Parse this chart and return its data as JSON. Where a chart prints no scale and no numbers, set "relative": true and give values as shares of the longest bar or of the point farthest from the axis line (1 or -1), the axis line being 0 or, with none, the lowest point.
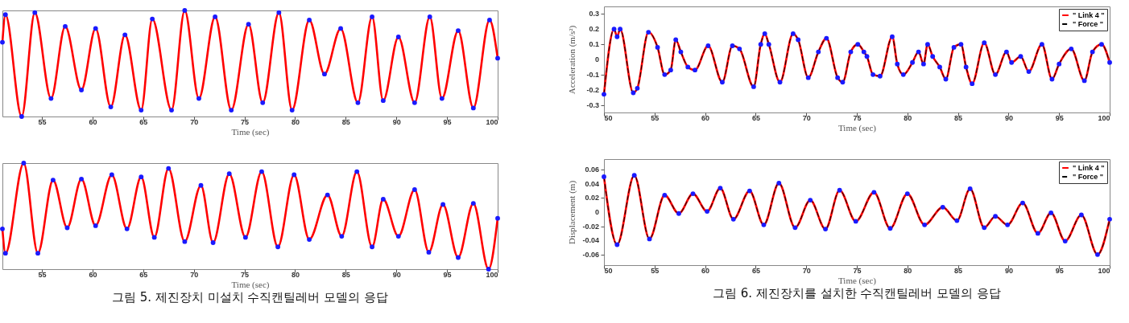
{
  "chart_data": [
    {
      "type": "line",
      "relative": true,
      "xlabel": "Time (sec)",
      "x": [
        51.1,
        51.4,
        53.0,
        54.3,
        55.9,
        57.3,
        58.9,
        60.3,
        61.8,
        63.2,
        64.8,
        65.9,
        67.8,
        69.1,
        70.5,
        72.1,
        73.7,
        75.4,
        76.8,
        78.4,
        79.7,
        81.4,
        82.9,
        84.5,
        86.2,
        87.6,
        88.7,
        90.2,
        91.8,
        93.3,
        94.5,
        96.1,
        97.6,
        99.2,
        100
      ],
      "xlim": [
        51.1,
        100
      ],
      "xticks": [
        55,
        60,
        65,
        70,
        75,
        80,
        85,
        90,
        95,
        100
      ],
      "tick_labels": "x",
      "series": [
        {
          "type": "line",
          "color": "#ff0000",
          "values": [
            0.7,
            0.96,
            0,
            0.98,
            0.17,
            0.85,
            0.25,
            0.83,
            0.09,
            0.77,
            0.06,
            0.92,
            0.06,
            1.0,
            0.17,
            0.94,
            0.06,
            0.87,
            0.13,
            0.98,
            0.06,
            0.91,
            0.4,
            0.83,
            0.13,
            0.94,
            0.15,
            0.75,
            0.13,
            0.94,
            0.17,
            0.81,
            0.08,
            0.91,
            0.55
          ]
        },
        {
          "type": "scatter",
          "marker": "circle",
          "color": "#1a1aff",
          "values": [
            0.7,
            0.96,
            0,
            0.98,
            0.17,
            0.85,
            0.25,
            0.83,
            0.09,
            0.77,
            0.06,
            0.92,
            0.06,
            1.0,
            0.17,
            0.94,
            0.06,
            0.87,
            0.13,
            0.98,
            0.06,
            0.91,
            0.4,
            0.83,
            0.13,
            0.94,
            0.15,
            0.75,
            0.13,
            0.94,
            0.17,
            0.81,
            0.08,
            0.91,
            0.55
          ]
        }
      ]
    },
    {
      "type": "line",
      "xlabel": "Time (sec)",
      "ylabel": "Acceleration (m/s²)",
      "legend": "top right",
      "x": [
        50,
        51,
        51.3,
        51.6,
        52.9,
        53.3,
        54.4,
        55.3,
        56,
        56.6,
        57.1,
        57.6,
        58.3,
        59,
        60.3,
        61.7,
        62.7,
        63.4,
        64.8,
        65.5,
        65.9,
        66.3,
        67.4,
        68.7,
        69.2,
        70.2,
        71.2,
        72,
        73.1,
        73.6,
        74.4,
        75.1,
        75.7,
        76,
        76.6,
        77.3,
        78.5,
        79,
        79.6,
        80.5,
        81.1,
        81.6,
        82,
        82.5,
        83.2,
        83.8,
        84.6,
        85.3,
        85.8,
        86.4,
        87.6,
        88.7,
        89.8,
        90.3,
        91.2,
        92,
        93.3,
        94.3,
        95,
        96.2,
        97.5,
        98.3,
        99.2,
        100
      ],
      "xlim": [
        50,
        100
      ],
      "xticks": [
        50,
        55,
        60,
        65,
        70,
        75,
        80,
        85,
        90,
        95,
        100
      ],
      "ylim": [
        -0.35,
        0.35
      ],
      "yticks": [
        -0.3,
        -0.2,
        -0.1,
        0,
        0.1,
        0.2,
        0.3
      ],
      "series": [
        {
          "type": "line",
          "name": "\" Link 4 \"",
          "color": "#ff0000",
          "values": [
            -0.23,
            0.2,
            0.15,
            0.2,
            -0.22,
            -0.19,
            0.18,
            0.08,
            -0.1,
            -0.07,
            0.13,
            0.05,
            -0.05,
            -0.07,
            0.09,
            -0.15,
            0.09,
            0.07,
            -0.18,
            0.1,
            0.17,
            0.1,
            -0.15,
            0.17,
            0.13,
            -0.12,
            0.05,
            0.14,
            -0.12,
            -0.15,
            0.05,
            0.1,
            0.05,
            0.02,
            -0.1,
            -0.11,
            0.15,
            -0.03,
            -0.1,
            -0.02,
            0.05,
            -0.03,
            0.1,
            0.02,
            -0.05,
            -0.13,
            0.08,
            0.1,
            -0.05,
            -0.16,
            0.11,
            -0.1,
            0.05,
            -0.02,
            0.02,
            -0.08,
            0.1,
            -0.13,
            -0.03,
            0.07,
            -0.14,
            0.05,
            0.1,
            -0.02
          ]
        },
        {
          "type": "line",
          "name": "\" Force \"",
          "color": "#000000",
          "line_style": "dashed",
          "values": [
            -0.23,
            0.2,
            0.15,
            0.2,
            -0.22,
            -0.19,
            0.18,
            0.08,
            -0.1,
            -0.07,
            0.13,
            0.05,
            -0.05,
            -0.07,
            0.09,
            -0.15,
            0.09,
            0.07,
            -0.18,
            0.1,
            0.17,
            0.1,
            -0.15,
            0.17,
            0.13,
            -0.12,
            0.05,
            0.14,
            -0.12,
            -0.15,
            0.05,
            0.1,
            0.05,
            0.02,
            -0.1,
            -0.11,
            0.15,
            -0.03,
            -0.1,
            -0.02,
            0.05,
            -0.03,
            0.1,
            0.02,
            -0.05,
            -0.13,
            0.08,
            0.1,
            -0.05,
            -0.16,
            0.11,
            -0.1,
            0.05,
            -0.02,
            0.02,
            -0.08,
            0.1,
            -0.13,
            -0.03,
            0.07,
            -0.14,
            0.05,
            0.1,
            -0.02
          ]
        },
        {
          "type": "scatter",
          "marker": "circle",
          "color": "#1a1aff",
          "values": [
            -0.23,
            0.2,
            0.15,
            0.2,
            -0.22,
            -0.19,
            0.18,
            0.08,
            -0.1,
            -0.07,
            0.13,
            0.05,
            -0.05,
            -0.07,
            0.09,
            -0.15,
            0.09,
            0.07,
            -0.18,
            0.1,
            0.17,
            0.1,
            -0.15,
            0.17,
            0.13,
            -0.12,
            0.05,
            0.14,
            -0.12,
            -0.15,
            0.05,
            0.1,
            0.05,
            0.02,
            -0.1,
            -0.11,
            0.15,
            -0.03,
            -0.1,
            -0.02,
            0.05,
            -0.03,
            0.1,
            0.02,
            -0.05,
            -0.13,
            0.08,
            0.1,
            -0.05,
            -0.16,
            0.11,
            -0.1,
            0.05,
            -0.02,
            0.02,
            -0.08,
            0.1,
            -0.13,
            -0.03,
            0.07,
            -0.14,
            0.05,
            0.1,
            -0.02
          ]
        }
      ]
    },
    {
      "type": "line",
      "relative": true,
      "xlabel": "Time (sec)",
      "x": [
        51.1,
        51.4,
        53.2,
        54.6,
        56.1,
        57.5,
        58.9,
        60.3,
        61.9,
        63.4,
        64.8,
        66.1,
        67.5,
        69.1,
        70.7,
        71.9,
        73.5,
        75.1,
        76.7,
        78.3,
        79.9,
        81.4,
        83.2,
        84.6,
        86.1,
        87.6,
        88.7,
        90.2,
        91.8,
        93.2,
        94.6,
        96.1,
        97.6,
        99.1,
        100
      ],
      "xlim": [
        51.1,
        100
      ],
      "xticks": [
        55,
        60,
        65,
        70,
        75,
        80,
        85,
        90,
        95,
        100
      ],
      "tick_labels": "x",
      "annotations": [
        "그림 5. 제진장치 미설치 수직캔틸레버 모델의 응답"
      ],
      "series": [
        {
          "type": "line",
          "color": "#ff0000",
          "values": [
            0.38,
            0.15,
            1.0,
            0.15,
            0.84,
            0.39,
            0.85,
            0.41,
            0.89,
            0.38,
            0.87,
            0.3,
            0.95,
            0.26,
            0.79,
            0.25,
            0.9,
            0.3,
            0.92,
            0.21,
            0.89,
            0.28,
            0.7,
            0.31,
            0.92,
            0.21,
            0.66,
            0.31,
            0.75,
            0.16,
            0.61,
            0.11,
            0.62,
            0,
            0.48
          ]
        },
        {
          "type": "scatter",
          "marker": "circle",
          "color": "#1a1aff",
          "values": [
            0.38,
            0.15,
            1.0,
            0.15,
            0.84,
            0.39,
            0.85,
            0.41,
            0.89,
            0.38,
            0.87,
            0.3,
            0.95,
            0.26,
            0.79,
            0.25,
            0.9,
            0.3,
            0.92,
            0.21,
            0.89,
            0.28,
            0.7,
            0.31,
            0.92,
            0.21,
            0.66,
            0.31,
            0.75,
            0.16,
            0.61,
            0.11,
            0.62,
            0,
            0.48
          ]
        }
      ]
    },
    {
      "type": "line",
      "xlabel": "Time (sec)",
      "ylabel": "Displacement (m)",
      "legend": "top right",
      "annotations": [
        "그림 6. 제진장치를 설치한 수직캔틸레버 모델의 응답"
      ],
      "x": [
        50,
        51.3,
        53,
        54.5,
        56,
        57.4,
        58.8,
        60.2,
        61.5,
        62.8,
        64.4,
        65.8,
        67.3,
        68.9,
        70.4,
        71.9,
        73.3,
        74.9,
        76.7,
        78.3,
        80,
        81.7,
        83.5,
        84.9,
        86.2,
        87.6,
        88.7,
        89.9,
        91.4,
        92.9,
        94.2,
        95.6,
        97.2,
        98.8,
        100
      ],
      "xlim": [
        50,
        100
      ],
      "xticks": [
        50,
        55,
        60,
        65,
        70,
        75,
        80,
        85,
        90,
        95,
        100
      ],
      "ylim": [
        -0.075,
        0.075
      ],
      "yticks": [
        -0.06,
        -0.04,
        -0.02,
        0,
        0.02,
        0.04,
        0.06
      ],
      "series": [
        {
          "type": "line",
          "name": "\" Link 4 \"",
          "color": "#ff0000",
          "values": [
            0.05,
            -0.046,
            0.052,
            -0.038,
            0.024,
            -0.002,
            0.026,
            0.001,
            0.034,
            -0.01,
            0.03,
            -0.018,
            0.041,
            -0.022,
            0.017,
            -0.024,
            0.031,
            -0.013,
            0.028,
            -0.023,
            0.026,
            -0.018,
            0.007,
            -0.012,
            0.033,
            -0.022,
            -0.006,
            -0.018,
            0.013,
            -0.03,
            -0.001,
            -0.041,
            -0.004,
            -0.06,
            -0.01
          ]
        },
        {
          "type": "line",
          "name": "\" Force \"",
          "color": "#000000",
          "line_style": "dashed",
          "values": [
            0.05,
            -0.046,
            0.052,
            -0.038,
            0.024,
            -0.002,
            0.026,
            0.001,
            0.034,
            -0.01,
            0.03,
            -0.018,
            0.041,
            -0.022,
            0.017,
            -0.024,
            0.031,
            -0.013,
            0.028,
            -0.023,
            0.026,
            -0.018,
            0.007,
            -0.012,
            0.033,
            -0.022,
            -0.006,
            -0.018,
            0.013,
            -0.03,
            -0.001,
            -0.041,
            -0.004,
            -0.06,
            -0.01
          ]
        },
        {
          "type": "scatter",
          "marker": "circle",
          "color": "#1a1aff",
          "values": [
            0.05,
            -0.046,
            0.052,
            -0.038,
            0.024,
            -0.002,
            0.026,
            0.001,
            0.034,
            -0.01,
            0.03,
            -0.018,
            0.041,
            -0.022,
            0.017,
            -0.024,
            0.031,
            -0.013,
            0.028,
            -0.023,
            0.026,
            -0.018,
            0.007,
            -0.012,
            0.033,
            -0.022,
            -0.006,
            -0.018,
            0.013,
            -0.03,
            -0.001,
            -0.041,
            -0.004,
            -0.06,
            -0.01
          ]
        }
      ]
    }
  ]
}
